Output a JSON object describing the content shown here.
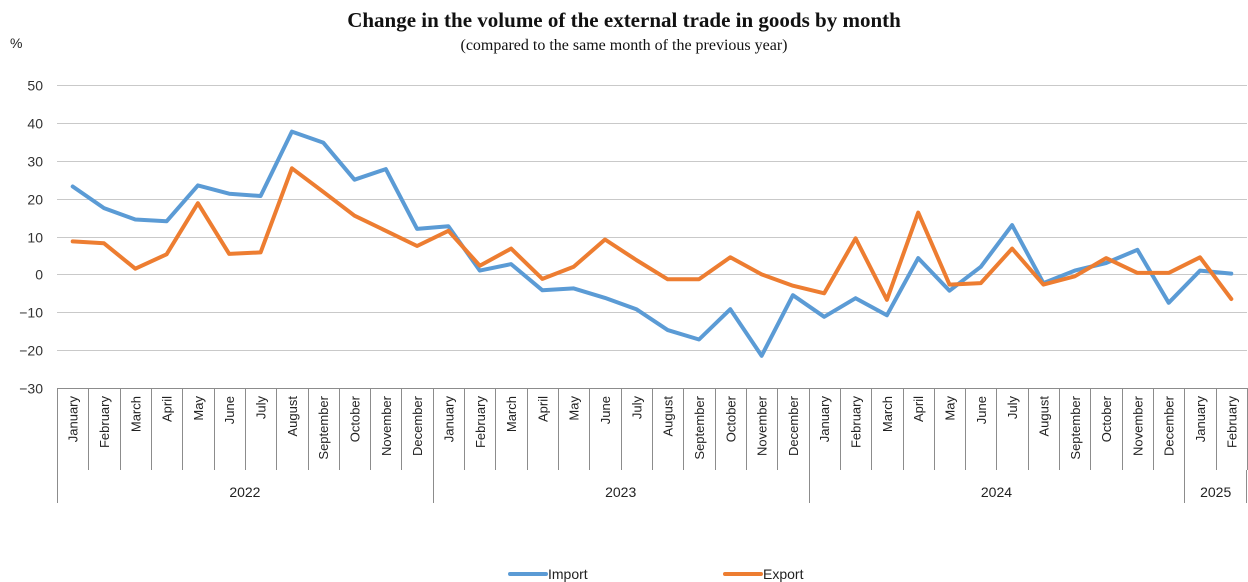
{
  "chart_data": {
    "type": "line",
    "title": "Change in the volume of the external trade in goods by month",
    "subtitle": "(compared to the same month of the previous year)",
    "unit": "%",
    "ylim": [
      -30,
      50
    ],
    "yticks": [
      50,
      40,
      30,
      20,
      10,
      0,
      -10,
      -20,
      -30
    ],
    "grid": true,
    "legend_position": "bottom",
    "months": [
      "January",
      "February",
      "March",
      "April",
      "May",
      "June",
      "July",
      "August",
      "September",
      "October",
      "November",
      "December",
      "January",
      "February",
      "March",
      "April",
      "May",
      "June",
      "July",
      "August",
      "September",
      "October",
      "November",
      "December",
      "January",
      "February",
      "March",
      "April",
      "May",
      "June",
      "July",
      "August",
      "September",
      "October",
      "November",
      "December",
      "January",
      "February"
    ],
    "years": [
      {
        "label": "2022",
        "count": 12
      },
      {
        "label": "2023",
        "count": 12
      },
      {
        "label": "2024",
        "count": 12
      },
      {
        "label": "2025",
        "count": 2
      }
    ],
    "series": [
      {
        "name": "Import",
        "color": "#5b9bd5",
        "values": [
          23.2,
          17.5,
          14.5,
          14.0,
          23.5,
          21.3,
          20.7,
          37.7,
          34.8,
          25.0,
          27.8,
          12.0,
          12.7,
          1.0,
          2.7,
          -4.2,
          -3.7,
          -6.2,
          -9.2,
          -14.7,
          -17.2,
          -9.2,
          -21.5,
          -5.5,
          -11.2,
          -6.3,
          -10.8,
          4.3,
          -4.3,
          2.0,
          13.0,
          -2.3,
          1.0,
          3.0,
          6.5,
          -7.5,
          1.0,
          0.2
        ]
      },
      {
        "name": "Export",
        "color": "#ed7d31",
        "values": [
          8.7,
          8.2,
          1.5,
          5.3,
          18.8,
          5.4,
          5.8,
          28.0,
          21.8,
          15.5,
          11.5,
          7.5,
          11.5,
          2.3,
          6.8,
          -1.2,
          2.0,
          9.2,
          3.8,
          -1.3,
          -1.3,
          4.5,
          0.0,
          -3.0,
          -5.0,
          9.5,
          -6.7,
          16.3,
          -2.7,
          -2.3,
          6.8,
          -2.7,
          -0.5,
          4.3,
          0.4,
          0.4,
          4.5,
          -6.5
        ]
      }
    ]
  }
}
